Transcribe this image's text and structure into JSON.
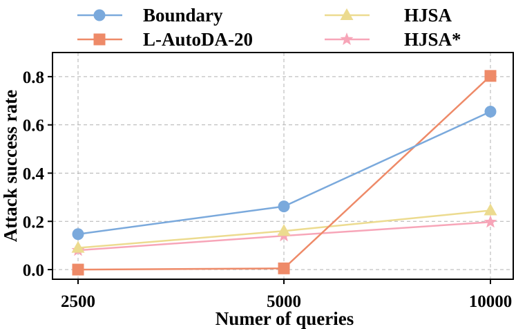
{
  "chart_data": {
    "type": "line",
    "title": "",
    "xlabel": "Numer of queries",
    "ylabel": "Attack success rate",
    "categories": [
      "2500",
      "5000",
      "10000"
    ],
    "ylim": [
      -0.04,
      0.9
    ],
    "yticks": [
      "0.0",
      "0.2",
      "0.4",
      "0.6",
      "0.8"
    ],
    "ytick_values": [
      0.0,
      0.2,
      0.4,
      0.6,
      0.8
    ],
    "grid": true,
    "legend_position": "top",
    "series": [
      {
        "name": "Boundary",
        "values": [
          0.147,
          0.262,
          0.655
        ],
        "color": "#7aa9dc",
        "marker": "circle"
      },
      {
        "name": "L-AutoDA-20",
        "values": [
          0.0,
          0.005,
          0.803
        ],
        "color": "#ee8a68",
        "marker": "square"
      },
      {
        "name": "HJSA",
        "values": [
          0.09,
          0.16,
          0.245
        ],
        "color": "#ecdb8f",
        "marker": "triangle"
      },
      {
        "name": "HJSA*",
        "values": [
          0.08,
          0.14,
          0.197
        ],
        "color": "#f7a5b8",
        "marker": "star"
      }
    ]
  }
}
